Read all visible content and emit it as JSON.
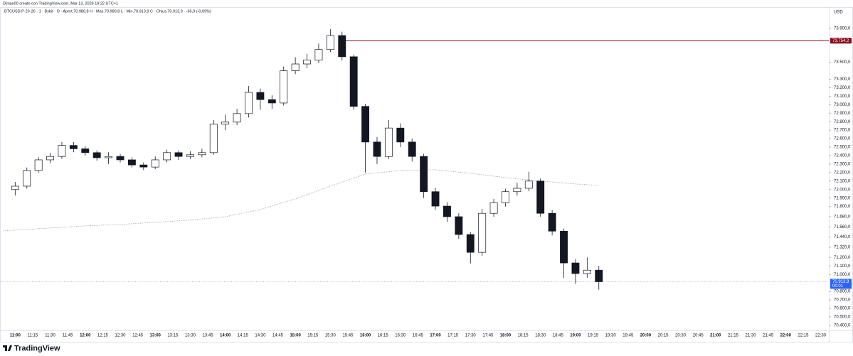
{
  "header": {
    "credit": "Dimax00 creato con TradingView.com, Mar 13, 2026 19:22 UTC+1",
    "symbol_line": "BTCUSD.P·26·26 · 1 · Bybit · O · Apert.70.980,8 H · Mas.70.980,8 L · Min.70.913,9 C · Chius.70.913,9 · -66,9 (-0,09%)"
  },
  "brand": "TradingView",
  "chart_data": {
    "type": "candlestick",
    "currency": "USD",
    "x": [
      "11:00",
      "11:10",
      "11:20",
      "11:30",
      "11:40",
      "11:50",
      "12:00",
      "12:10",
      "12:20",
      "12:30",
      "12:40",
      "12:50",
      "13:00",
      "13:10",
      "13:20",
      "13:30",
      "13:40",
      "13:50",
      "14:00",
      "14:10",
      "14:20",
      "14:30",
      "14:40",
      "14:50",
      "15:00",
      "15:10",
      "15:20",
      "15:30",
      "15:40",
      "15:50",
      "16:00",
      "16:10",
      "16:20",
      "16:30",
      "16:40",
      "16:50",
      "17:00",
      "17:10",
      "17:20",
      "17:30",
      "17:40",
      "17:50",
      "18:00",
      "18:10",
      "18:20",
      "18:30",
      "18:40",
      "18:50",
      "19:00",
      "19:10",
      "19:20"
    ],
    "open": [
      72000,
      72040,
      72225,
      72350,
      72390,
      72520,
      72480,
      72435,
      72375,
      72390,
      72350,
      72290,
      72265,
      72350,
      72435,
      72390,
      72410,
      72435,
      72770,
      72795,
      72895,
      73145,
      73060,
      73020,
      73400,
      73480,
      73525,
      73650,
      73815,
      73565,
      72980,
      72560,
      72390,
      72725,
      72560,
      72390,
      71975,
      71805,
      71680,
      71470,
      71260,
      71720,
      71845,
      71975,
      72015,
      72100,
      71720,
      71510,
      71135,
      71010,
      71050
    ],
    "high": [
      72090,
      72260,
      72380,
      72430,
      72560,
      72560,
      72510,
      72460,
      72440,
      72420,
      72380,
      72320,
      72390,
      72470,
      72460,
      72450,
      72480,
      72820,
      72880,
      72950,
      73220,
      73190,
      73110,
      73450,
      73560,
      73600,
      73720,
      73890,
      73860,
      73590,
      73010,
      72620,
      72820,
      72780,
      72600,
      72420,
      72020,
      71850,
      71720,
      71500,
      71770,
      71890,
      72010,
      72080,
      72210,
      72130,
      71760,
      71540,
      71180,
      71200,
      71100
    ],
    "low": [
      71930,
      72010,
      72200,
      72310,
      72360,
      72440,
      72400,
      72340,
      72300,
      72320,
      72260,
      72230,
      72240,
      72320,
      72350,
      72360,
      72380,
      72410,
      72700,
      72760,
      72850,
      72940,
      72950,
      72990,
      73360,
      73430,
      73490,
      73620,
      73520,
      72940,
      72200,
      72300,
      72360,
      72500,
      72330,
      71900,
      71760,
      71620,
      71420,
      71130,
      71220,
      71680,
      71800,
      71930,
      71980,
      71680,
      71460,
      70960,
      70890,
      70960,
      70820
    ],
    "close": [
      72040,
      72225,
      72350,
      72390,
      72520,
      72480,
      72435,
      72375,
      72390,
      72350,
      72290,
      72265,
      72350,
      72435,
      72390,
      72410,
      72435,
      72770,
      72795,
      72895,
      73145,
      73060,
      73020,
      73400,
      73480,
      73525,
      73650,
      73815,
      73565,
      72980,
      72560,
      72390,
      72725,
      72560,
      72390,
      71975,
      71805,
      71680,
      71470,
      71260,
      71720,
      71845,
      71975,
      72015,
      72100,
      71720,
      71510,
      71135,
      71010,
      71050,
      70913.9
    ],
    "up_color": "#ffffff",
    "down_color": "#131722",
    "xlim": [
      "10:47",
      "22:37"
    ],
    "xticks": [
      "11:00",
      "11:15",
      "11:30",
      "11:45",
      "12:00",
      "12:15",
      "12:30",
      "12:45",
      "13:00",
      "13:15",
      "13:30",
      "13:45",
      "14:00",
      "14:15",
      "14:30",
      "14:45",
      "15:00",
      "15:15",
      "15:30",
      "15:45",
      "16:00",
      "16:15",
      "16:30",
      "16:45",
      "17:00",
      "17:15",
      "17:30",
      "17:45",
      "18:00",
      "18:15",
      "18:30",
      "18:45",
      "19:00",
      "19:15",
      "19:30",
      "19:45",
      "20:00",
      "20:15",
      "20:30",
      "20:45",
      "21:00",
      "21:15",
      "21:30",
      "21:45",
      "22:00",
      "22:15",
      "22:30"
    ],
    "ylim": [
      70340,
      74150
    ],
    "yticks": [
      {
        "value": 73900,
        "label": "73.900,0"
      },
      {
        "value": 73500,
        "label": "73.500,0"
      },
      {
        "value": 73300,
        "label": "73.300,0"
      },
      {
        "value": 73200,
        "label": "73.200,0"
      },
      {
        "value": 73100,
        "label": "73.100,0"
      },
      {
        "value": 73000,
        "label": "73.000,0"
      },
      {
        "value": 72900,
        "label": "72.900,0"
      },
      {
        "value": 72800,
        "label": "72.800,0"
      },
      {
        "value": 72700,
        "label": "72.700,0"
      },
      {
        "value": 72600,
        "label": "72.600,0"
      },
      {
        "value": 72500,
        "label": "72.500,0"
      },
      {
        "value": 72400,
        "label": "72.400,0"
      },
      {
        "value": 72300,
        "label": "72.300,0"
      },
      {
        "value": 72200,
        "label": "72.200,0"
      },
      {
        "value": 72100,
        "label": "72.100,0"
      },
      {
        "value": 72000,
        "label": "72.000,0"
      },
      {
        "value": 71900,
        "label": "71.900,0"
      },
      {
        "value": 71800,
        "label": "71.800,0"
      },
      {
        "value": 71680,
        "label": "71.680,0"
      },
      {
        "value": 71560,
        "label": "71.560,0"
      },
      {
        "value": 71440,
        "label": "71.440,0"
      },
      {
        "value": 71320,
        "label": "71.320,0"
      },
      {
        "value": 71200,
        "label": "71.200,0"
      },
      {
        "value": 71100,
        "label": "71.100,0"
      },
      {
        "value": 71000,
        "label": "71.000,0"
      },
      {
        "value": 70800,
        "label": "70.800,0"
      },
      {
        "value": 70700,
        "label": "70.700,0"
      },
      {
        "value": 70600,
        "label": "70.600,0"
      },
      {
        "value": 70500,
        "label": "70.500,0"
      },
      {
        "value": 70400,
        "label": "70.400,0"
      }
    ],
    "grid": false,
    "vwap": {
      "color": "#8a8e99",
      "x": [
        "10:50",
        "11:30",
        "12:00",
        "12:30",
        "13:00",
        "13:30",
        "14:00",
        "14:30",
        "15:00",
        "15:30",
        "16:00",
        "16:30",
        "17:00",
        "17:30",
        "18:00",
        "18:30",
        "19:00",
        "19:20"
      ],
      "values": [
        71513,
        71547,
        71572,
        71589,
        71614,
        71640,
        71680,
        71765,
        71890,
        72040,
        72183,
        72225,
        72233,
        72192,
        72141,
        72100,
        72066,
        72049
      ]
    },
    "level_line": {
      "value": 73754.2,
      "label": "73.754,2",
      "from": "15:40",
      "color": "#880e1f"
    },
    "last_price": {
      "value": 70913.9,
      "label": "70.913,9",
      "countdown": "00:01",
      "color": "#2962ff"
    }
  }
}
